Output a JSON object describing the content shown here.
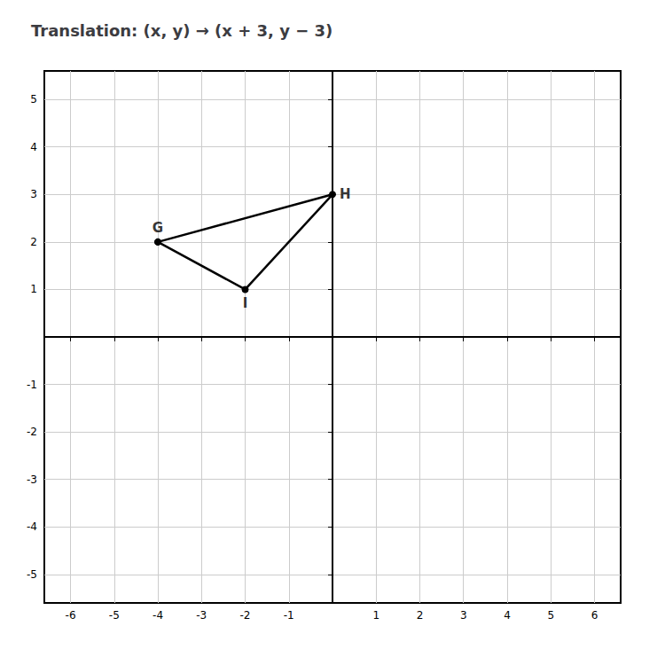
{
  "chart_data": {
    "type": "line",
    "title": "Translation: (x, y) → (x + 3, y − 3)",
    "x": [
      -4,
      0,
      -2,
      -4
    ],
    "values": [
      2,
      3,
      1,
      2
    ],
    "color": "#000000",
    "marker": "circle",
    "annotations": [
      {
        "text": "G",
        "x": -4,
        "y": 2
      },
      {
        "text": "H",
        "x": 0,
        "y": 3
      },
      {
        "text": "I",
        "x": -2,
        "y": 1
      }
    ],
    "xlim": [
      -6.6,
      6.6
    ],
    "ylim": [
      -5.6,
      5.6
    ],
    "xticks": [
      -6,
      -5,
      -4,
      -3,
      -2,
      -1,
      1,
      2,
      3,
      4,
      5,
      6
    ],
    "yticks": [
      -5,
      -4,
      -3,
      -2,
      -1,
      1,
      2,
      3,
      4,
      5
    ],
    "grid": true
  }
}
